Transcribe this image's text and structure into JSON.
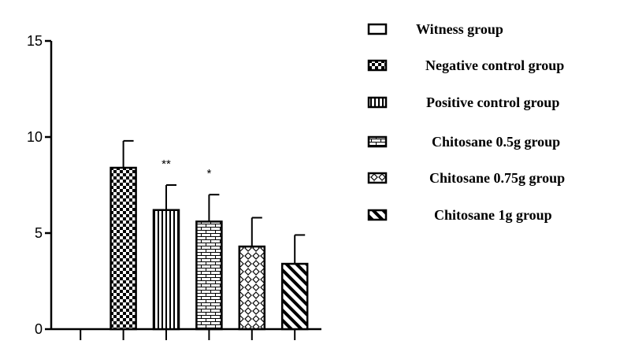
{
  "chart_data": {
    "type": "bar",
    "categories": [
      "Witness group",
      "Negative control group",
      "Positive control group",
      "Chitosane 0.5g group",
      "Chitosane 0.75g group",
      "Chitosane 1g group"
    ],
    "values": [
      0,
      8.4,
      6.2,
      5.6,
      4.3,
      3.4
    ],
    "error": [
      0,
      1.4,
      1.3,
      1.4,
      1.5,
      1.5
    ],
    "annotations": [
      "",
      "",
      "**",
      "*",
      "",
      ""
    ],
    "ylim": [
      0,
      15
    ],
    "yticks": [
      "0",
      "5",
      "10",
      "15"
    ],
    "patterns": [
      "solid-white",
      "checker",
      "vertical-stripes",
      "brick",
      "diamond",
      "diagonal-stripes"
    ],
    "legend_position": "right",
    "grid": false
  }
}
